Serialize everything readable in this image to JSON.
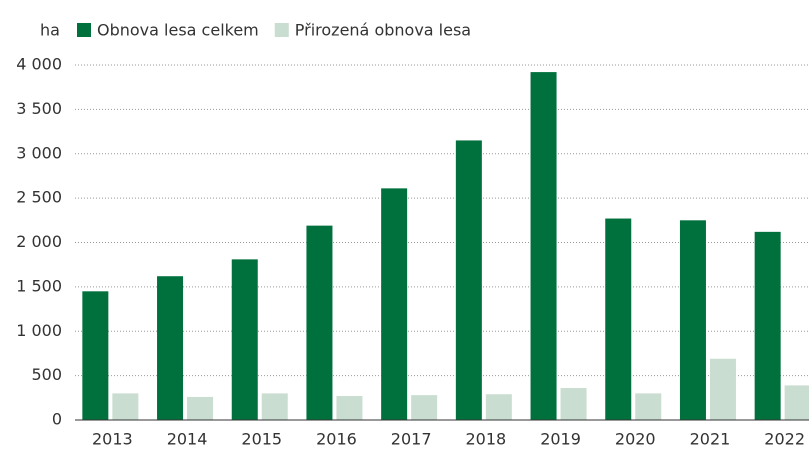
{
  "chart_data": {
    "type": "bar",
    "y_label": "ha",
    "categories": [
      "2013",
      "2014",
      "2015",
      "2016",
      "2017",
      "2018",
      "2019",
      "2020",
      "2021",
      "2022"
    ],
    "series": [
      {
        "name": "Obnova lesa celkem",
        "color": "#00703c",
        "values": [
          1450,
          1620,
          1810,
          2190,
          2610,
          3150,
          3920,
          2270,
          2250,
          2120
        ]
      },
      {
        "name": "Přirozená obnova lesa",
        "color": "#c9ddd0",
        "values": [
          300,
          260,
          300,
          270,
          280,
          290,
          360,
          300,
          690,
          390
        ]
      }
    ],
    "ylim": [
      0,
      4000
    ],
    "yticks": [
      0,
      500,
      {
        "value": 1000,
        "label": "1 000"
      },
      {
        "value": 1500,
        "label": "1 500"
      },
      {
        "value": 2000,
        "label": "2 000"
      },
      {
        "value": 2500,
        "label": "2 500"
      },
      {
        "value": 3000,
        "label": "3 000"
      },
      {
        "value": 3500,
        "label": "3 500"
      },
      {
        "value": 4000,
        "label": "4 000"
      }
    ],
    "grid": true
  }
}
